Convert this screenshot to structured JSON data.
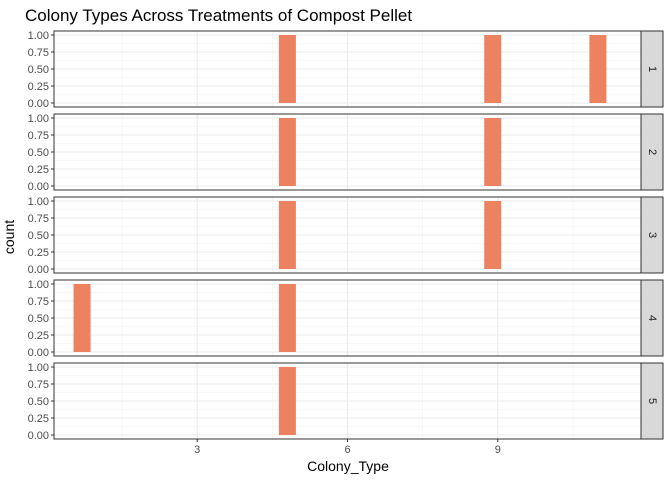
{
  "chart_data": {
    "type": "bar",
    "title": "Colony Types Across Treatments of Compost Pellet",
    "xlabel": "Colony_Type",
    "ylabel": "count",
    "x_ticks": [
      3,
      6,
      9
    ],
    "x_tick_labels": [
      "3",
      "6",
      "9"
    ],
    "xlim": [
      0.14,
      11.86
    ],
    "ylim": [
      0,
      1
    ],
    "y_ticks": [
      0,
      0.25,
      0.5,
      0.75,
      1
    ],
    "y_tick_labels": [
      "0.00",
      "0.25",
      "0.50",
      "0.75",
      "1.00"
    ],
    "bar_width": 0.34,
    "bar_color": "#ec825f",
    "grid": true,
    "facets": [
      {
        "label": "1",
        "bars": [
          {
            "x": 4.8,
            "count": 1
          },
          {
            "x": 8.9,
            "count": 1
          },
          {
            "x": 11.0,
            "count": 1
          }
        ]
      },
      {
        "label": "2",
        "bars": [
          {
            "x": 4.8,
            "count": 1
          },
          {
            "x": 8.9,
            "count": 1
          }
        ]
      },
      {
        "label": "3",
        "bars": [
          {
            "x": 4.8,
            "count": 1
          },
          {
            "x": 8.9,
            "count": 1
          }
        ]
      },
      {
        "label": "4",
        "bars": [
          {
            "x": 0.7,
            "count": 1
          },
          {
            "x": 4.8,
            "count": 1
          }
        ]
      },
      {
        "label": "5",
        "bars": [
          {
            "x": 4.8,
            "count": 1
          }
        ]
      }
    ]
  }
}
